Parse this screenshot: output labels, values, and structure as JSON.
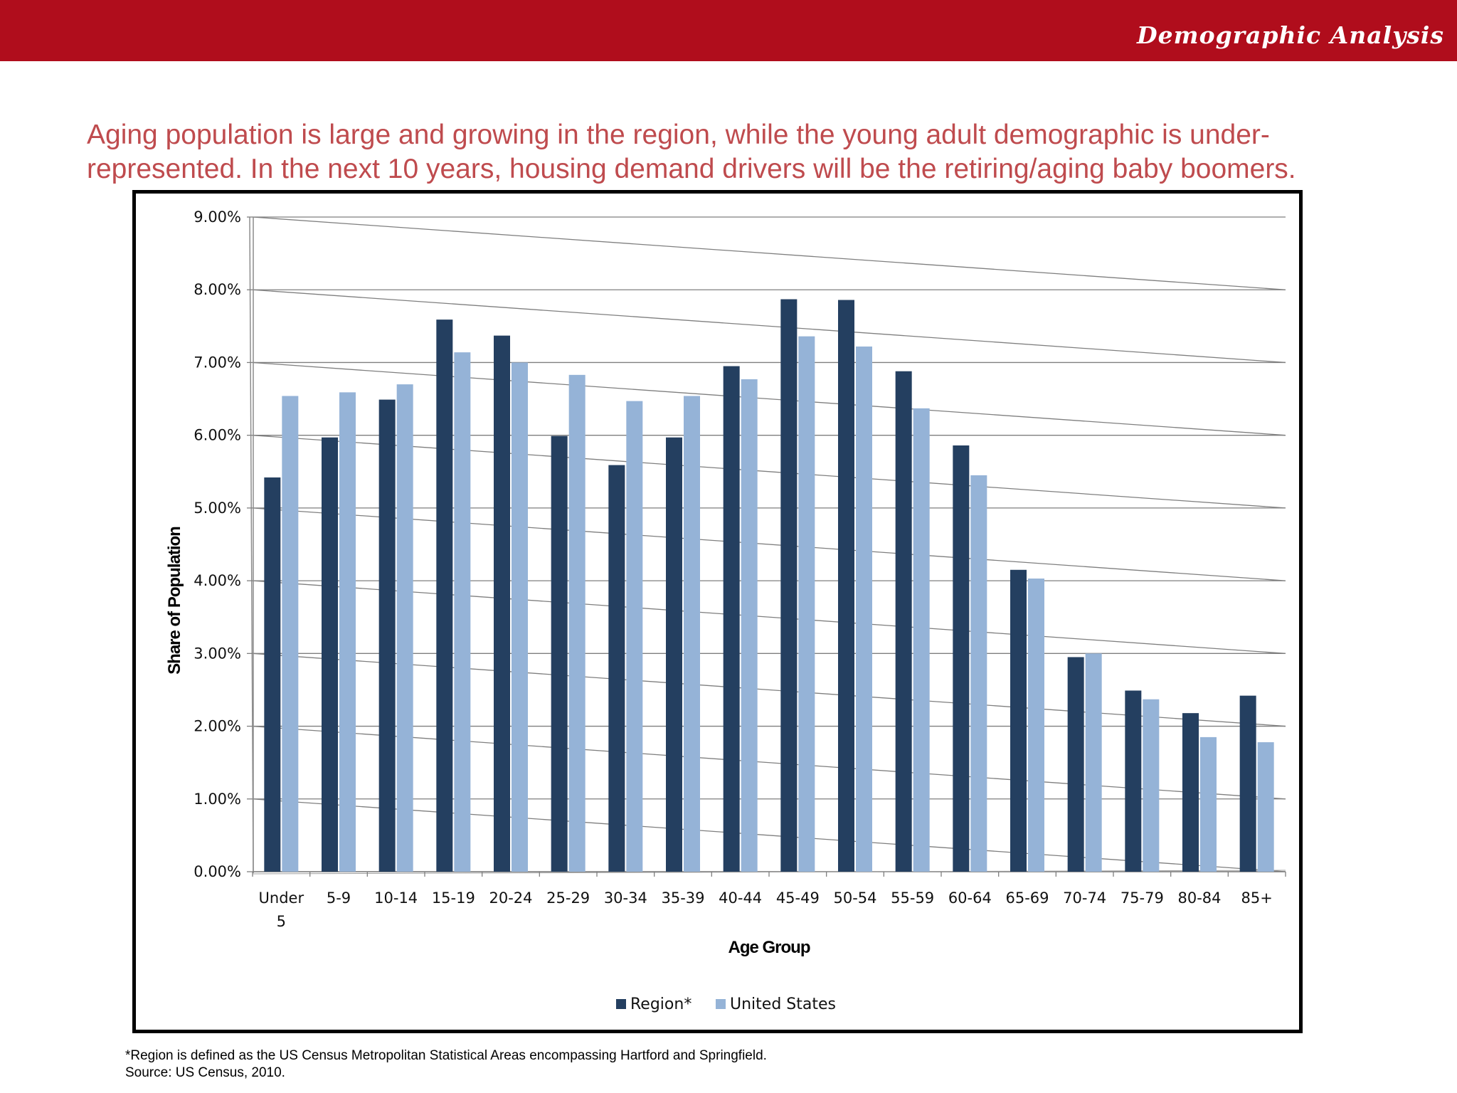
{
  "header": {
    "brand": "Demographic Analysis",
    "bar_color": "#b00d1c"
  },
  "headline": {
    "line1": "Aging population is large and growing in the region, while the young adult demographic is under-",
    "line2": "represented. In the next 10 years, housing demand drivers will be the retiring/aging baby boomers."
  },
  "chart_data": {
    "type": "bar",
    "categories": [
      "Under 5",
      "5-9",
      "10-14",
      "15-19",
      "20-24",
      "25-29",
      "30-34",
      "35-39",
      "40-44",
      "45-49",
      "50-54",
      "55-59",
      "60-64",
      "65-69",
      "70-74",
      "75-79",
      "80-84",
      "85+"
    ],
    "series": [
      {
        "name": "Region*",
        "color": "#243f60",
        "values": [
          5.42,
          5.97,
          6.49,
          7.59,
          7.37,
          5.99,
          5.59,
          5.97,
          6.95,
          7.87,
          7.86,
          6.88,
          5.86,
          4.15,
          2.95,
          2.49,
          2.18,
          2.42
        ]
      },
      {
        "name": "United States",
        "color": "#95b3d7",
        "values": [
          6.54,
          6.59,
          6.7,
          7.14,
          7.0,
          6.83,
          6.47,
          6.54,
          6.77,
          7.36,
          7.22,
          6.37,
          5.45,
          4.03,
          3.0,
          2.37,
          1.85,
          1.78
        ]
      }
    ],
    "yticks": [
      "0.00%",
      "1.00%",
      "2.00%",
      "3.00%",
      "4.00%",
      "5.00%",
      "6.00%",
      "7.00%",
      "8.00%",
      "9.00%"
    ],
    "ylim": [
      0,
      9
    ],
    "xlabel": "Age Group",
    "ylabel": "Share of Population",
    "grid": true,
    "legend_position": "bottom"
  },
  "footnote": {
    "line1": "*Region is defined as the US Census Metropolitan Statistical Areas encompassing Hartford and Springfield.",
    "line2": "Source: US Census, 2010."
  }
}
